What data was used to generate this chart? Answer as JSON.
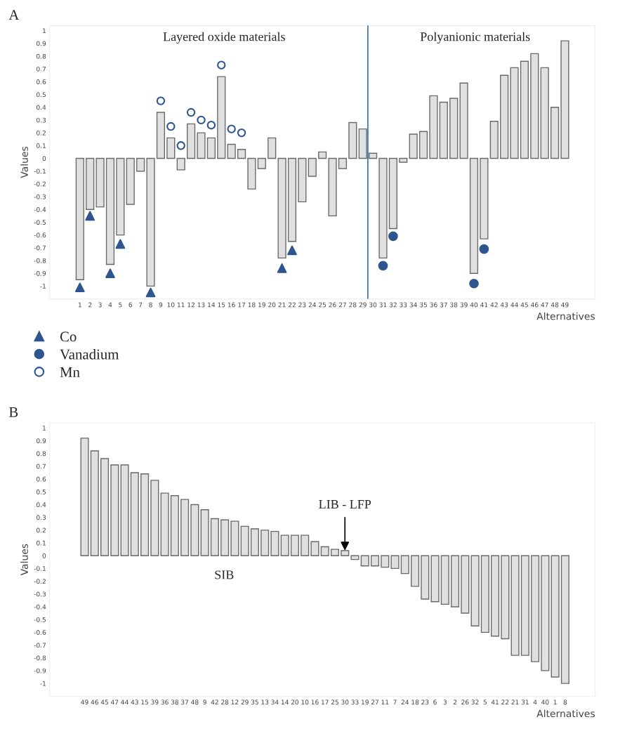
{
  "chart_data": [
    {
      "type": "bar",
      "title": "A",
      "xlabel": "Alternatives",
      "ylabel": "Values",
      "x": [
        1,
        2,
        3,
        4,
        5,
        6,
        7,
        8,
        9,
        10,
        11,
        12,
        13,
        14,
        15,
        16,
        17,
        18,
        19,
        20,
        21,
        22,
        23,
        24,
        25,
        26,
        27,
        28,
        29,
        30,
        31,
        32,
        33,
        34,
        35,
        36,
        37,
        38,
        39,
        40,
        41,
        42,
        43,
        44,
        45,
        46,
        47,
        48,
        49
      ],
      "series": [
        {
          "color": "#e0e0e0",
          "values": [
            -0.95,
            -0.4,
            -0.38,
            -0.83,
            -0.6,
            -0.36,
            -0.1,
            -1.0,
            0.36,
            0.16,
            -0.09,
            0.27,
            0.2,
            0.16,
            0.64,
            0.11,
            0.07,
            -0.24,
            -0.08,
            0.16,
            -0.78,
            -0.65,
            -0.34,
            -0.14,
            0.05,
            -0.45,
            -0.08,
            0.28,
            0.23,
            0.04,
            -0.78,
            -0.55,
            -0.03,
            0.19,
            0.21,
            0.49,
            0.44,
            0.47,
            0.59,
            -0.9,
            -0.63,
            0.29,
            0.65,
            0.71,
            0.76,
            0.82,
            0.71,
            0.4,
            0.92
          ]
        },
        {
          "type": "scatter",
          "name": "Co",
          "color": "#2f5590",
          "marker": "triangle",
          "x": [
            1,
            2,
            4,
            5,
            8,
            21,
            22
          ],
          "values": [
            -1.01,
            -0.45,
            -0.9,
            -0.67,
            -1.05,
            -0.86,
            -0.72
          ]
        },
        {
          "type": "scatter",
          "name": "Vanadium",
          "color": "#2f5590",
          "marker": "circle",
          "x": [
            31,
            32,
            40,
            41
          ],
          "values": [
            -0.84,
            -0.61,
            -0.98,
            -0.71
          ]
        },
        {
          "type": "scatter",
          "name": "Mn",
          "color": "#2f5590",
          "marker": "open circle",
          "x": [
            9,
            10,
            11,
            12,
            13,
            14,
            15,
            16,
            17
          ],
          "values": [
            0.45,
            0.25,
            0.1,
            0.36,
            0.3,
            0.26,
            0.73,
            0.23,
            0.2
          ]
        }
      ],
      "xlim": [
        -2,
        52
      ],
      "xticks": [
        1,
        2,
        3,
        4,
        5,
        6,
        7,
        8,
        9,
        10,
        11,
        12,
        13,
        14,
        15,
        16,
        17,
        18,
        19,
        20,
        21,
        22,
        23,
        24,
        25,
        26,
        27,
        28,
        29,
        30,
        31,
        32,
        33,
        34,
        35,
        36,
        37,
        38,
        39,
        40,
        41,
        42,
        43,
        44,
        45,
        46,
        47,
        48,
        49
      ],
      "ylim": [
        -1.1,
        1.04
      ],
      "yticks": [
        -1,
        -0.9,
        -0.8,
        -0.7,
        -0.6,
        -0.5,
        -0.4,
        -0.3,
        -0.2,
        -0.1,
        0,
        0.1,
        0.2,
        0.3,
        0.4,
        0.5,
        0.6,
        0.7,
        0.8,
        0.9,
        1
      ],
      "ref_lines": [
        {
          "axis": "x",
          "value": 29.5,
          "color": "#2e75b6",
          "line_style": "solid"
        }
      ],
      "annotations": [
        "Layered oxide materials",
        "Polyanionic materials"
      ],
      "legend": "bottom left",
      "grid": false
    },
    {
      "type": "bar",
      "title": "B",
      "xlabel": "Alternatives",
      "ylabel": "Values",
      "categories": [
        "49",
        "46",
        "45",
        "47",
        "44",
        "43",
        "15",
        "39",
        "36",
        "38",
        "37",
        "48",
        "9",
        "42",
        "28",
        "12",
        "29",
        "35",
        "13",
        "34",
        "14",
        "20",
        "10",
        "16",
        "17",
        "25",
        "30",
        "33",
        "19",
        "27",
        "11",
        "7",
        "24",
        "18",
        "23",
        "6",
        "3",
        "2",
        "26",
        "32",
        "5",
        "41",
        "22",
        "21",
        "31",
        "4",
        "40",
        "1",
        "8"
      ],
      "series": [
        {
          "color": "#e0e0e0",
          "values": [
            0.92,
            0.82,
            0.76,
            0.71,
            0.71,
            0.65,
            0.64,
            0.59,
            0.49,
            0.47,
            0.44,
            0.4,
            0.36,
            0.29,
            0.28,
            0.27,
            0.23,
            0.21,
            0.2,
            0.19,
            0.16,
            0.16,
            0.16,
            0.11,
            0.07,
            0.05,
            0.04,
            -0.03,
            -0.08,
            -0.08,
            -0.09,
            -0.1,
            -0.14,
            -0.24,
            -0.34,
            -0.36,
            -0.38,
            -0.4,
            -0.45,
            -0.55,
            -0.6,
            -0.63,
            -0.65,
            -0.78,
            -0.78,
            -0.83,
            -0.9,
            -0.95,
            -1.0
          ]
        }
      ],
      "ylim": [
        -1.1,
        1.04
      ],
      "yticks": [
        -1,
        -0.9,
        -0.8,
        -0.7,
        -0.6,
        -0.5,
        -0.4,
        -0.3,
        -0.2,
        -0.1,
        0,
        0.1,
        0.2,
        0.3,
        0.4,
        0.5,
        0.6,
        0.7,
        0.8,
        0.9,
        1
      ],
      "annotations": [
        {
          "text": "LIB - LFP",
          "x": "30",
          "y": 0.04
        },
        {
          "text": "SIB"
        }
      ],
      "grid": false
    }
  ]
}
